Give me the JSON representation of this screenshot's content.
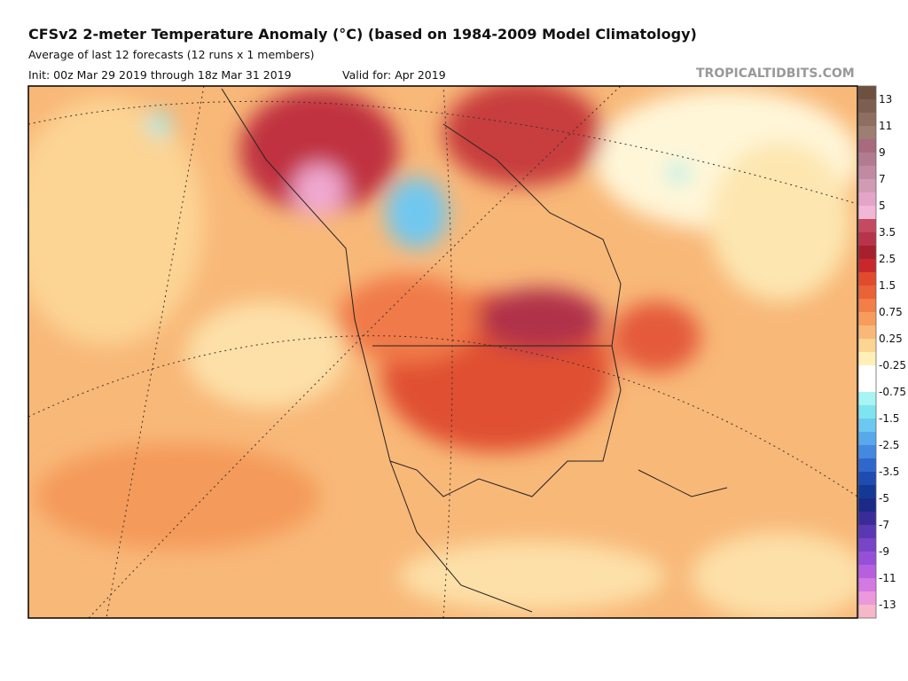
{
  "header": {
    "title": "CFSv2 2-meter Temperature Anomaly (°C) (based on 1984-2009 Model Climatology)",
    "subtitle": "Average of last 12 forecasts (12 runs x 1 members)",
    "init": "Init: 00z Mar 29 2019 through 18z Mar 31 2019",
    "valid": "Valid for: Apr 2019",
    "site": "TROPICALTIDBITS.COM"
  },
  "colorbar": {
    "labels": [
      13,
      11,
      9,
      7,
      5,
      3.5,
      2.5,
      1.5,
      0.75,
      0.25,
      -0.25,
      -0.75,
      -1.5,
      -2.5,
      -3.5,
      -5,
      -7,
      -9,
      -11,
      -13
    ],
    "colors": [
      "#6e5040",
      "#7e5e50",
      "#8e6e60",
      "#9e7e72",
      "#a86a7e",
      "#b27c90",
      "#c08aa2",
      "#d09cb4",
      "#e4a4c8",
      "#f2b6d6",
      "#c44a62",
      "#b8344a",
      "#a8202e",
      "#c8282c",
      "#e24a2e",
      "#ea6238",
      "#f27e48",
      "#f69c5c",
      "#f9b878",
      "#fcd494",
      "#fff0b8",
      "#ffffff",
      "#ffffff",
      "#a8f4f4",
      "#7ee4f0",
      "#6cc8f0",
      "#58a8ec",
      "#4488e0",
      "#2e68cc",
      "#1e4cb0",
      "#143896",
      "#1a2a86",
      "#3a2c98",
      "#5a38b4",
      "#7844c8",
      "#9650d8",
      "#b660e0",
      "#d478e2",
      "#ec98dc",
      "#f6b8c8"
    ]
  }
}
